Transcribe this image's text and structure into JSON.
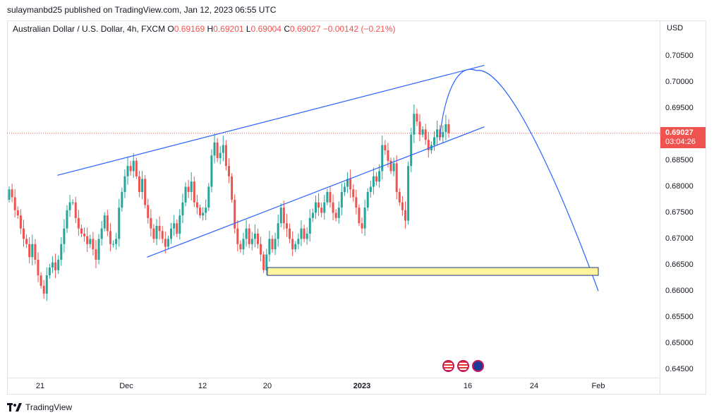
{
  "header": {
    "publisher_line": "sulaymanbd25 published on TradingView.com, Jan 12, 2023 06:55 UTC"
  },
  "legend": {
    "symbol": "Australian Dollar / U.S. Dollar, 4h, FXCM",
    "open_label": "O",
    "open_value": "0.69169",
    "high_label": "H",
    "high_value": "0.69201",
    "low_label": "L",
    "low_value": "0.69004",
    "close_label": "C",
    "close_value": "0.69027",
    "change": "−0.00142 (−0.21%)"
  },
  "price_axis": {
    "currency": "USD",
    "ticks": [
      "0.70500",
      "0.70000",
      "0.69500",
      "0.69000",
      "0.68500",
      "0.68000",
      "0.67500",
      "0.67000",
      "0.66500",
      "0.66000",
      "0.65500",
      "0.65000",
      "0.64500"
    ],
    "last_price": "0.69027",
    "countdown": "03:04:26"
  },
  "time_axis": {
    "ticks": [
      "21",
      "Dec",
      "12",
      "20",
      "2023",
      "16",
      "24",
      "Feb"
    ]
  },
  "brand": {
    "name": "TradingView"
  },
  "colors": {
    "up": "#26a69a",
    "down": "#ef5350",
    "drawing": "#2962ff",
    "zone_fill": "#fff59d",
    "zone_border": "#1e3a8a"
  },
  "chart_data": {
    "type": "candlestick",
    "ylim": [
      0.643,
      0.7095
    ],
    "grid": false,
    "close_series": [
      0.6795,
      0.678,
      0.6755,
      0.6745,
      0.672,
      0.67,
      0.669,
      0.6665,
      0.669,
      0.666,
      0.663,
      0.661,
      0.6595,
      0.663,
      0.6645,
      0.6655,
      0.664,
      0.666,
      0.669,
      0.672,
      0.6755,
      0.677,
      0.677,
      0.674,
      0.672,
      0.671,
      0.6705,
      0.669,
      0.67,
      0.668,
      0.666,
      0.67,
      0.672,
      0.6745,
      0.6715,
      0.669,
      0.669,
      0.67,
      0.676,
      0.679,
      0.682,
      0.684,
      0.683,
      0.685,
      0.682,
      0.679,
      0.6815,
      0.6765,
      0.674,
      0.672,
      0.67,
      0.6725,
      0.6715,
      0.67,
      0.6685,
      0.67,
      0.672,
      0.673,
      0.671,
      0.6745,
      0.677,
      0.68,
      0.679,
      0.681,
      0.677,
      0.676,
      0.6745,
      0.675,
      0.676,
      0.68,
      0.686,
      0.6885,
      0.6855,
      0.6865,
      0.688,
      0.684,
      0.682,
      0.6775,
      0.672,
      0.669,
      0.668,
      0.67,
      0.672,
      0.669,
      0.67,
      0.671,
      0.669,
      0.667,
      0.664,
      0.667,
      0.67,
      0.668,
      0.67,
      0.673,
      0.676,
      0.673,
      0.672,
      0.67,
      0.668,
      0.669,
      0.67,
      0.672,
      0.67,
      0.671,
      0.674,
      0.675,
      0.677,
      0.676,
      0.675,
      0.677,
      0.679,
      0.677,
      0.675,
      0.674,
      0.676,
      0.679,
      0.68,
      0.6815,
      0.6795,
      0.678,
      0.676,
      0.673,
      0.672,
      0.676,
      0.679,
      0.68,
      0.682,
      0.681,
      0.683,
      0.688,
      0.687,
      0.685,
      0.683,
      0.6845,
      0.679,
      0.677,
      0.6755,
      0.6735,
      0.684,
      0.69,
      0.694,
      0.6925,
      0.69,
      0.691,
      0.689,
      0.687,
      0.688,
      0.6895,
      0.691,
      0.6895,
      0.6905,
      0.692,
      0.6903
    ],
    "ranges": [
      {
        "name": "channel-upper-line",
        "points": [
          [
            "2022-11-23",
            0.6822
          ],
          [
            "2023-01-18",
            0.7033
          ]
        ]
      },
      {
        "name": "channel-lower-line",
        "points": [
          [
            "2022-12-04",
            0.6665
          ],
          [
            "2023-01-18",
            0.6915
          ]
        ]
      },
      {
        "name": "projection-curve",
        "points": [
          [
            "2023-01-12",
            0.689
          ],
          [
            "2023-01-17",
            0.7023
          ],
          [
            "2023-02-01",
            0.66
          ]
        ]
      },
      {
        "name": "demand-zone",
        "from": "2022-12-20",
        "to": "2023-02-01",
        "ylim": [
          0.663,
          0.6645
        ]
      }
    ]
  }
}
